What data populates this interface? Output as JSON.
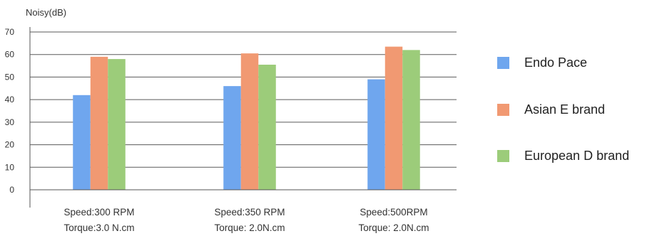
{
  "chart_data": {
    "type": "bar",
    "ylabel": "Noisy(dB)",
    "ylim": [
      0,
      70
    ],
    "yticks": [
      0,
      10,
      20,
      30,
      40,
      50,
      60,
      70
    ],
    "grid": true,
    "legend_position": "right",
    "categories": [
      {
        "line1": "Speed:300 RPM",
        "line2": "Torque:3.0 N.cm"
      },
      {
        "line1": "Speed:350 RPM",
        "line2": "Torque: 2.0N.cm"
      },
      {
        "line1": "Speed:500RPM",
        "line2": "Torque: 2.0N.cm"
      }
    ],
    "series": [
      {
        "name": "Endo Pace",
        "color": "#6fa6ee",
        "values": [
          42,
          46,
          49
        ]
      },
      {
        "name": "Asian E brand",
        "color": "#f19972",
        "values": [
          59,
          60.5,
          63.5
        ]
      },
      {
        "name": "European D brand",
        "color": "#9ccc7a",
        "values": [
          58,
          55.5,
          62
        ]
      }
    ]
  }
}
